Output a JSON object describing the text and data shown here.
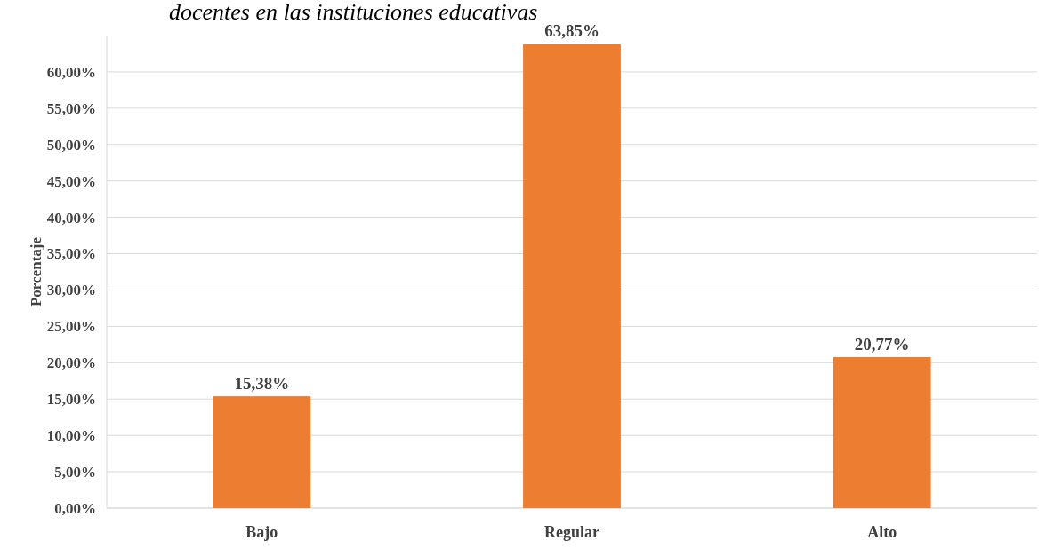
{
  "chart_data": {
    "type": "bar",
    "title": "docentes en las instituciones educativas",
    "ylabel": "Porcentaje",
    "categories": [
      "Bajo",
      "Regular",
      "Alto"
    ],
    "values": [
      15.38,
      63.85,
      20.77
    ],
    "color": "#ed7d31",
    "value_labels": [
      "15,38%",
      "63,85%",
      "20,77%"
    ],
    "ylim": [
      0,
      65
    ],
    "yticks": [
      {
        "value": 0,
        "label": "0,00%"
      },
      {
        "value": 5,
        "label": "5,00%"
      },
      {
        "value": 10,
        "label": "10,00%"
      },
      {
        "value": 15,
        "label": "15,00%"
      },
      {
        "value": 20,
        "label": "20,00%"
      },
      {
        "value": 25,
        "label": "25,00%"
      },
      {
        "value": 30,
        "label": "30,00%"
      },
      {
        "value": 35,
        "label": "35,00%"
      },
      {
        "value": 40,
        "label": "40,00%"
      },
      {
        "value": 45,
        "label": "45,00%"
      },
      {
        "value": 50,
        "label": "50,00%"
      },
      {
        "value": 55,
        "label": "55,00%"
      },
      {
        "value": 60,
        "label": "60,00%"
      }
    ],
    "grid": "y"
  }
}
